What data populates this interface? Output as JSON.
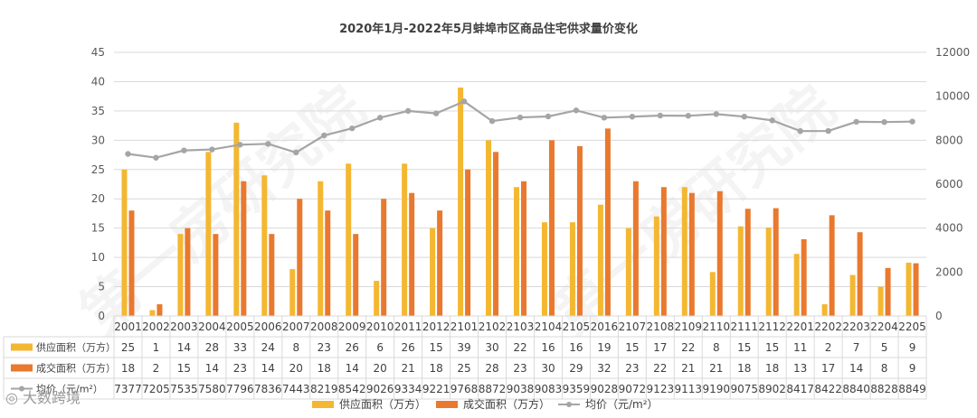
{
  "watermark": "第一房研究院",
  "source_mark": "大数跨境",
  "chart_data": {
    "type": "bar",
    "title": "2020年1月-2022年5月蚌埠市区商品住宅供求量价变化",
    "categories": [
      "2001",
      "2002",
      "2003",
      "2004",
      "2005",
      "2006",
      "2007",
      "2008",
      "2009",
      "2010",
      "2011",
      "2012",
      "2101",
      "2102",
      "2103",
      "2104",
      "2105",
      "2016",
      "2107",
      "2108",
      "2109",
      "2110",
      "2111",
      "2112",
      "2201",
      "2202",
      "2203",
      "2204",
      "2205"
    ],
    "series": [
      {
        "name": "供应面积（万方）",
        "type": "bar",
        "axis": "left",
        "color": "#F4B731",
        "values": [
          25,
          1,
          14,
          28,
          33,
          24,
          8,
          23,
          26,
          6,
          26,
          15,
          39,
          30,
          22,
          16,
          16,
          19,
          15,
          17,
          22,
          8,
          15,
          15,
          11,
          2,
          7,
          5,
          9
        ],
        "chart_values": [
          25,
          1,
          14,
          28,
          33,
          24,
          8,
          23,
          26,
          6,
          26,
          15,
          39,
          30,
          22,
          16,
          16,
          19,
          15,
          17,
          22,
          7.5,
          15.3,
          15.1,
          10.6,
          2,
          7,
          5,
          9.1
        ]
      },
      {
        "name": "成交面积（万方）",
        "type": "bar",
        "axis": "left",
        "color": "#E8792E",
        "values": [
          18,
          2,
          15,
          14,
          23,
          14,
          20,
          18,
          14,
          20,
          21,
          18,
          25,
          28,
          23,
          30,
          29,
          32,
          23,
          22,
          21,
          21,
          18,
          18,
          13,
          17,
          14,
          8,
          9
        ],
        "chart_values": [
          18,
          2,
          15,
          14,
          23,
          14,
          20,
          18,
          14,
          20,
          21,
          18,
          25,
          28,
          23,
          30,
          29,
          32,
          23,
          22,
          21,
          21.3,
          18.3,
          18.4,
          13.1,
          17.2,
          14.3,
          8.2,
          9
        ]
      },
      {
        "name": "均价（元/m²）",
        "type": "line",
        "axis": "right",
        "color": "#A5A5A5",
        "values": [
          7377,
          7205,
          7535,
          7580,
          7796,
          7836,
          7443,
          8219,
          8542,
          9026,
          9334,
          9221,
          9768,
          8872,
          9038,
          9083,
          9359,
          9028,
          9072,
          9123,
          9113,
          9190,
          9075,
          8902,
          8417,
          8422,
          8840,
          8828,
          8849
        ]
      }
    ],
    "y_left": {
      "min": 0,
      "max": 45,
      "step": 5,
      "ticks": [
        "0",
        "5",
        "10",
        "15",
        "20",
        "25",
        "30",
        "35",
        "40",
        "45"
      ]
    },
    "y_right": {
      "min": 0,
      "max": 12000,
      "step": 2000,
      "ticks": [
        "0",
        "2000",
        "4000",
        "6000",
        "8000",
        "10000",
        "12000"
      ]
    },
    "table_labels": [
      "供应面积（万方）",
      "成交面积（万方）",
      "均价（元/m²）"
    ],
    "legend": {
      "position": "bottom",
      "items": [
        "供应面积（万方）",
        "成交面积（万方）",
        "均价（元/m²）"
      ]
    },
    "grid": "horizontal"
  }
}
